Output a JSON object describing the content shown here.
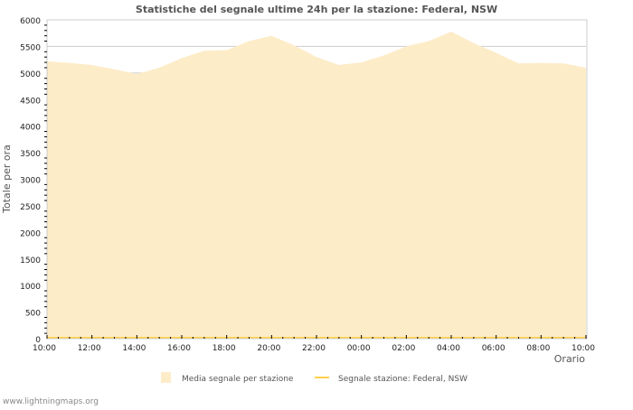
{
  "chart_data": {
    "type": "area",
    "title": "Statistiche del segnale ultime 24h per la stazione: Federal, NSW",
    "xlabel": "Orario",
    "ylabel": "Totale per ora",
    "ylim": [
      0,
      6000
    ],
    "yticks": [
      "0",
      "500",
      "1000",
      "1500",
      "2000",
      "2500",
      "3000",
      "3500",
      "4000",
      "4500",
      "5000",
      "5500",
      "6000"
    ],
    "xticks": [
      "10:00",
      "12:00",
      "14:00",
      "16:00",
      "18:00",
      "20:00",
      "22:00",
      "00:00",
      "02:00",
      "04:00",
      "06:00",
      "08:00",
      "10:00"
    ],
    "x_hours": [
      0,
      1,
      2,
      3,
      4,
      5,
      6,
      7,
      8,
      9,
      10,
      11,
      12,
      13,
      14,
      15,
      16,
      17,
      18,
      19,
      20,
      21,
      22,
      23,
      24
    ],
    "series": [
      {
        "name": "Media segnale per stazione",
        "color": "#fdecc8",
        "values": [
          5220,
          5190,
          5150,
          5070,
          4980,
          5100,
          5280,
          5420,
          5430,
          5600,
          5700,
          5520,
          5300,
          5150,
          5200,
          5330,
          5500,
          5600,
          5780,
          5560,
          5380,
          5180,
          5190,
          5180,
          5100
        ]
      },
      {
        "name": "Segnale stazione: Federal, NSW",
        "color": "#ffd04a",
        "values": [
          0,
          0,
          0,
          0,
          0,
          0,
          0,
          0,
          0,
          0,
          0,
          0,
          0,
          0,
          0,
          0,
          0,
          0,
          0,
          0,
          0,
          0,
          0,
          0,
          0
        ]
      }
    ],
    "legend": "bottom",
    "grid": true
  },
  "footer": "www.lightningmaps.org"
}
